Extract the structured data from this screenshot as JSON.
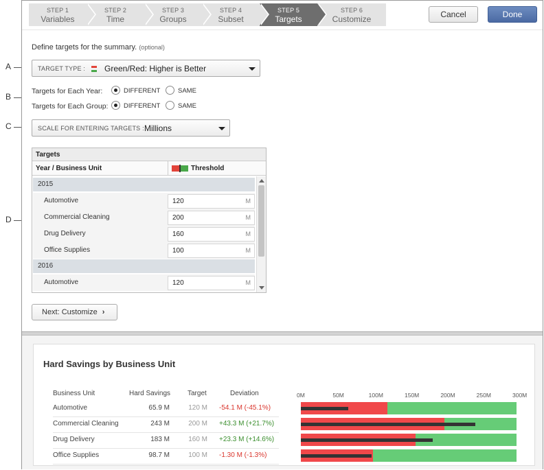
{
  "callouts": {
    "a": "A",
    "b": "B",
    "c": "C",
    "d": "D"
  },
  "wizard": {
    "steps": [
      {
        "num": "STEP 1",
        "name": "Variables",
        "active": false
      },
      {
        "num": "STEP 2",
        "name": "Time",
        "active": false
      },
      {
        "num": "STEP 3",
        "name": "Groups",
        "active": false
      },
      {
        "num": "STEP 4",
        "name": "Subset",
        "active": false
      },
      {
        "num": "STEP 5",
        "name": "Targets",
        "active": true
      },
      {
        "num": "STEP 6",
        "name": "Customize",
        "active": false
      }
    ],
    "cancel_label": "Cancel",
    "done_label": "Done"
  },
  "intro": {
    "text": "Define targets for the summary.",
    "optional": "(optional)"
  },
  "target_type": {
    "label": "TARGET TYPE :",
    "value": "Green/Red: Higher is Better",
    "icon": "red-green-swatch-icon"
  },
  "targets_year": {
    "label": "Targets for Each Year:",
    "option1": "DIFFERENT",
    "option2": "SAME",
    "selected": "DIFFERENT"
  },
  "targets_group": {
    "label": "Targets for Each Group:",
    "option1": "DIFFERENT",
    "option2": "SAME",
    "selected": "DIFFERENT"
  },
  "scale": {
    "label": "SCALE FOR ENTERING TARGETS :",
    "value": "Millions"
  },
  "targets_table": {
    "title": "Targets",
    "col1": "Year / Business Unit",
    "col2": "Threshold",
    "rows": [
      {
        "kind": "year",
        "label": "2015"
      },
      {
        "kind": "unit",
        "label": "Automotive",
        "value": "120",
        "unit": "M"
      },
      {
        "kind": "unit",
        "label": "Commercial Cleaning",
        "value": "200",
        "unit": "M"
      },
      {
        "kind": "unit",
        "label": "Drug Delivery",
        "value": "160",
        "unit": "M"
      },
      {
        "kind": "unit",
        "label": "Office Supplies",
        "value": "100",
        "unit": "M"
      },
      {
        "kind": "year",
        "label": "2016"
      },
      {
        "kind": "unit",
        "label": "Automotive",
        "value": "120",
        "unit": "M"
      }
    ]
  },
  "next_button": {
    "label": "Next: Customize",
    "chevron": "›"
  },
  "summary": {
    "title": "Hard Savings by Business Unit",
    "headers": {
      "unit": "Business Unit",
      "savings": "Hard Savings",
      "target": "Target",
      "deviation": "Deviation"
    },
    "rows": [
      {
        "unit": "Automotive",
        "savings": "65.9 M",
        "target": "120 M",
        "deviation": "-54.1 M (-45.1%)",
        "status": "red"
      },
      {
        "unit": "Commercial Cleaning",
        "savings": "243 M",
        "target": "200 M",
        "deviation": "+43.3 M (+21.7%)",
        "status": "green"
      },
      {
        "unit": "Drug Delivery",
        "savings": "183 M",
        "target": "160 M",
        "deviation": "+23.3 M (+14.6%)",
        "status": "green"
      },
      {
        "unit": "Office Supplies",
        "savings": "98.7 M",
        "target": "100 M",
        "deviation": "-1.30 M (-1.3%)",
        "status": "red"
      }
    ],
    "axis_ticks": [
      "0M",
      "50M",
      "100M",
      "150M",
      "200M",
      "250M",
      "300M"
    ],
    "colors": {
      "below": "#f0484a",
      "above": "#66cc77",
      "bar": "#333333"
    }
  },
  "chart_data": {
    "type": "bar",
    "categories": [
      "Automotive",
      "Commercial Cleaning",
      "Drug Delivery",
      "Office Supplies"
    ],
    "series": [
      {
        "name": "Hard Savings",
        "values": [
          65.9,
          243,
          183,
          98.7
        ]
      },
      {
        "name": "Target",
        "values": [
          120,
          200,
          160,
          100
        ]
      }
    ],
    "xlim": [
      0,
      300
    ],
    "title": "Hard Savings by Business Unit"
  }
}
